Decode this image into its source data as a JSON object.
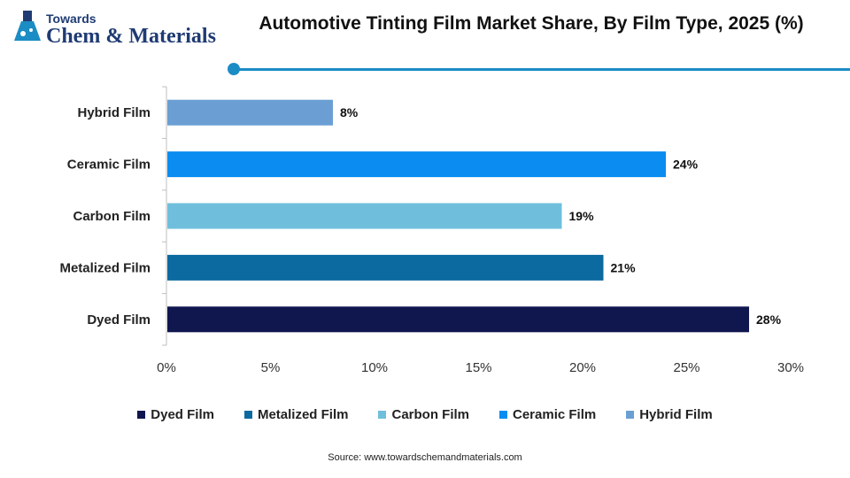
{
  "logo": {
    "top_text": "Towards",
    "main_text": "Chem & Materials"
  },
  "title": "Automotive Tinting Film Market Share, By Film Type, 2025 (%)",
  "source": "Source: www.towardschemandmaterials.com",
  "chart_data": {
    "type": "bar",
    "orientation": "horizontal",
    "title": "Automotive Tinting Film Market Share, By Film Type, 2025 (%)",
    "categories": [
      "Hybrid Film",
      "Ceramic Film",
      "Carbon Film",
      "Metalized Film",
      "Dyed Film"
    ],
    "values": [
      8,
      24,
      19,
      21,
      28
    ],
    "data_labels": [
      "8%",
      "24%",
      "19%",
      "21%",
      "28%"
    ],
    "colors": [
      "#6b9fd4",
      "#0a8cf0",
      "#6fbfdc",
      "#0c6aa0",
      "#10174f"
    ],
    "xlim": [
      0,
      30
    ],
    "xticks": [
      0,
      5,
      10,
      15,
      20,
      25,
      30
    ],
    "xtick_labels": [
      "0%",
      "5%",
      "10%",
      "15%",
      "20%",
      "25%",
      "30%"
    ],
    "xlabel": "",
    "ylabel": "",
    "grid": false,
    "legend_position": "bottom",
    "legend": [
      {
        "label": "Dyed Film",
        "color": "#10174f"
      },
      {
        "label": "Metalized Film",
        "color": "#0c6aa0"
      },
      {
        "label": "Carbon Film",
        "color": "#6fbfdc"
      },
      {
        "label": "Ceramic Film",
        "color": "#0a8cf0"
      },
      {
        "label": "Hybrid Film",
        "color": "#6b9fd4"
      }
    ]
  }
}
